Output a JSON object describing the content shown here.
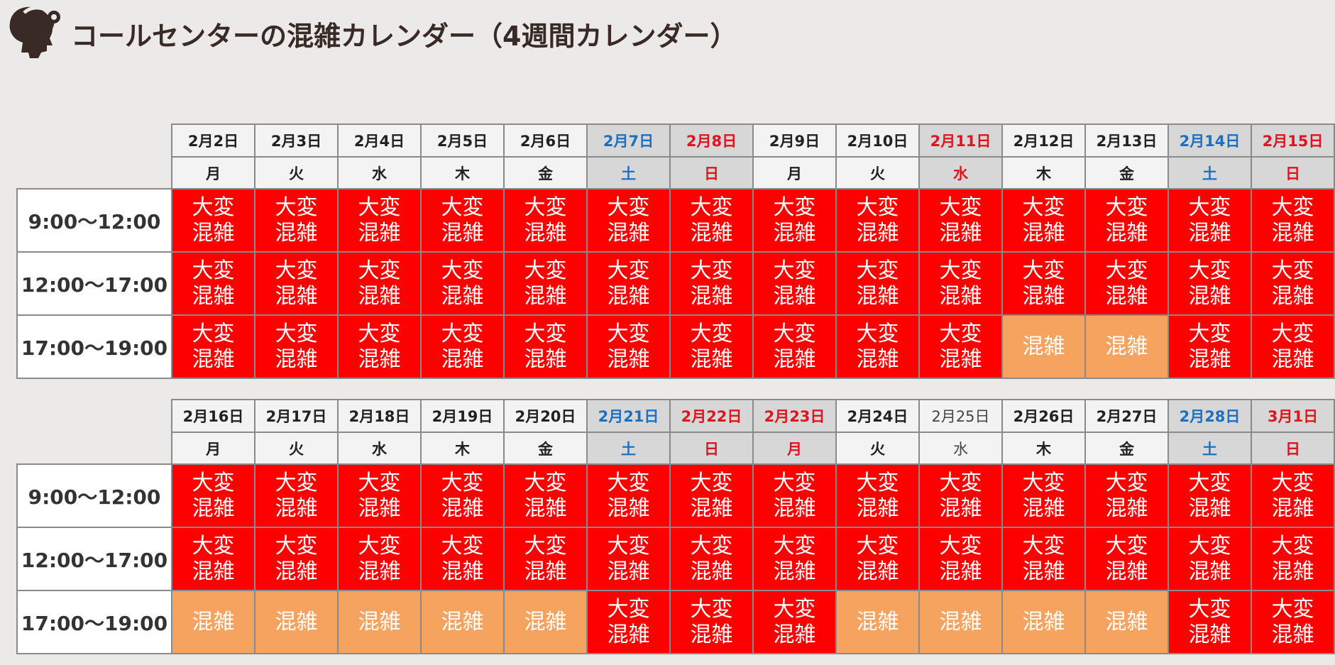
{
  "header": {
    "title": "コールセンターの混雑カレンダー（4週間カレンダー）",
    "icon": "call-center-headset-icon"
  },
  "legend": {
    "very_busy": "大変混雑",
    "busy": "混雑"
  },
  "colors": {
    "very_busy": "#ff0000",
    "busy": "#f5a35f",
    "saturday": "#1f6fc0",
    "holiday": "#e0141e",
    "holiday_bg": "#d7d7d7"
  },
  "weeks": [
    {
      "days": [
        {
          "date": "2月2日",
          "dow": "月",
          "type": "weekday"
        },
        {
          "date": "2月3日",
          "dow": "火",
          "type": "weekday"
        },
        {
          "date": "2月4日",
          "dow": "水",
          "type": "weekday"
        },
        {
          "date": "2月5日",
          "dow": "木",
          "type": "weekday"
        },
        {
          "date": "2月6日",
          "dow": "金",
          "type": "weekday"
        },
        {
          "date": "2月7日",
          "dow": "土",
          "type": "saturday"
        },
        {
          "date": "2月8日",
          "dow": "日",
          "type": "holiday"
        },
        {
          "date": "2月9日",
          "dow": "月",
          "type": "weekday"
        },
        {
          "date": "2月10日",
          "dow": "火",
          "type": "weekday"
        },
        {
          "date": "2月11日",
          "dow": "水",
          "type": "holiday"
        },
        {
          "date": "2月12日",
          "dow": "木",
          "type": "weekday"
        },
        {
          "date": "2月13日",
          "dow": "金",
          "type": "weekday"
        },
        {
          "date": "2月14日",
          "dow": "土",
          "type": "saturday"
        },
        {
          "date": "2月15日",
          "dow": "日",
          "type": "holiday"
        }
      ],
      "rows": [
        {
          "time": "9:00～12:00",
          "levels": [
            "v",
            "v",
            "v",
            "v",
            "v",
            "v",
            "v",
            "v",
            "v",
            "v",
            "v",
            "v",
            "v",
            "v"
          ]
        },
        {
          "time": "12:00～17:00",
          "levels": [
            "v",
            "v",
            "v",
            "v",
            "v",
            "v",
            "v",
            "v",
            "v",
            "v",
            "v",
            "v",
            "v",
            "v"
          ]
        },
        {
          "time": "17:00～19:00",
          "levels": [
            "v",
            "v",
            "v",
            "v",
            "v",
            "v",
            "v",
            "v",
            "v",
            "v",
            "b",
            "b",
            "v",
            "v"
          ]
        }
      ]
    },
    {
      "days": [
        {
          "date": "2月16日",
          "dow": "月",
          "type": "weekday"
        },
        {
          "date": "2月17日",
          "dow": "火",
          "type": "weekday"
        },
        {
          "date": "2月18日",
          "dow": "水",
          "type": "weekday"
        },
        {
          "date": "2月19日",
          "dow": "木",
          "type": "weekday"
        },
        {
          "date": "2月20日",
          "dow": "金",
          "type": "weekday"
        },
        {
          "date": "2月21日",
          "dow": "土",
          "type": "saturday"
        },
        {
          "date": "2月22日",
          "dow": "日",
          "type": "holiday"
        },
        {
          "date": "2月23日",
          "dow": "月",
          "type": "holiday"
        },
        {
          "date": "2月24日",
          "dow": "火",
          "type": "weekday"
        },
        {
          "date": "2月25日",
          "dow": "水",
          "type": "weekday-light"
        },
        {
          "date": "2月26日",
          "dow": "木",
          "type": "weekday"
        },
        {
          "date": "2月27日",
          "dow": "金",
          "type": "weekday"
        },
        {
          "date": "2月28日",
          "dow": "土",
          "type": "saturday"
        },
        {
          "date": "3月1日",
          "dow": "日",
          "type": "holiday"
        }
      ],
      "rows": [
        {
          "time": "9:00～12:00",
          "levels": [
            "v",
            "v",
            "v",
            "v",
            "v",
            "v",
            "v",
            "v",
            "v",
            "v",
            "v",
            "v",
            "v",
            "v"
          ]
        },
        {
          "time": "12:00～17:00",
          "levels": [
            "v",
            "v",
            "v",
            "v",
            "v",
            "v",
            "v",
            "v",
            "v",
            "v",
            "v",
            "v",
            "v",
            "v"
          ]
        },
        {
          "time": "17:00～19:00",
          "levels": [
            "b",
            "b",
            "b",
            "b",
            "b",
            "v",
            "v",
            "v",
            "b",
            "b",
            "b",
            "b",
            "v",
            "v"
          ]
        }
      ]
    }
  ]
}
